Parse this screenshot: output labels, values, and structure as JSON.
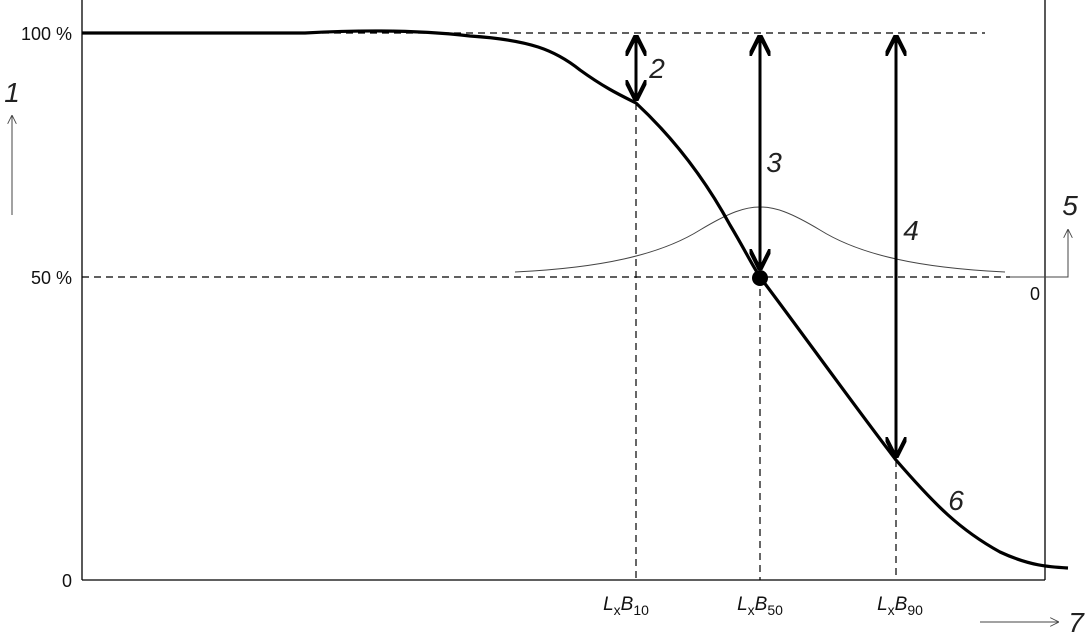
{
  "axis": {
    "y_top": "100 %",
    "y_mid": "50 %",
    "y_zero": "0",
    "right_zero": "0"
  },
  "markers": {
    "m1": "1",
    "m2": "2",
    "m3": "3",
    "m4": "4",
    "m5": "5",
    "m6": "6",
    "m7": "7"
  },
  "x_labels": [
    {
      "letter": "L",
      "sub": "x",
      "base": "B",
      "index": "10"
    },
    {
      "letter": "L",
      "sub": "x",
      "base": "B",
      "index": "50"
    },
    {
      "letter": "L",
      "sub": "x",
      "base": "B",
      "index": "90"
    }
  ]
}
